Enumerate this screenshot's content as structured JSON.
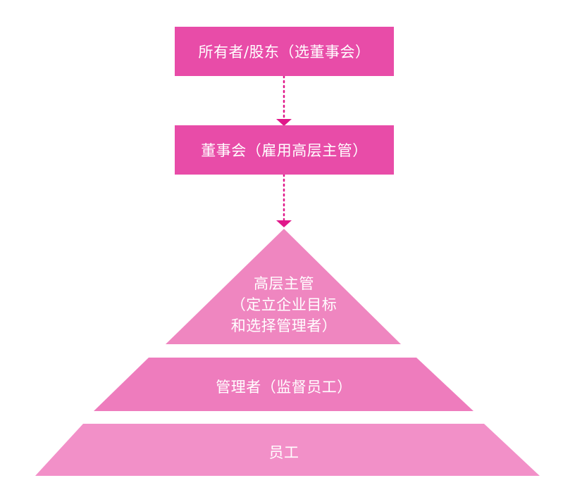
{
  "colors": {
    "box": "#e84ca8",
    "arrow": "#e0188a",
    "tier_top": "#ef86c0",
    "tier_mid": "#ee7cbd",
    "tier_bottom": "#f290c8"
  },
  "boxes": {
    "owners": "所有者/股东（选董事会）",
    "board": "董事会（雇用高层主管）"
  },
  "pyramid": {
    "top_line1": "高层主管",
    "top_line2": "（定立企业目标",
    "top_line3": "和选择管理者）",
    "middle": "管理者（监督员工）",
    "bottom": "员工"
  }
}
